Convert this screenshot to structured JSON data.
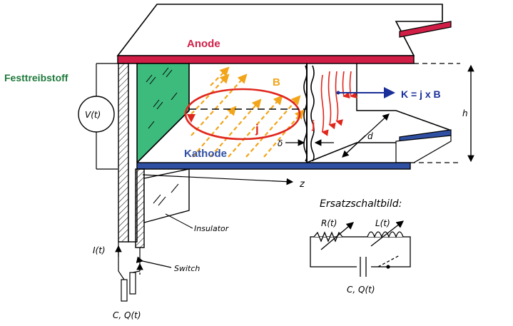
{
  "labels": {
    "anode": "Anode",
    "festtreibstoff": "Festtreibstoff",
    "kathode": "Kathode",
    "b_field": "B",
    "j_current_left": "j",
    "j_current_right": "j",
    "lorentz_force": "K = j x B",
    "voltage": "V(t)",
    "height": "h",
    "gap_d": "d",
    "delta": "δ",
    "z_axis": "z",
    "insulator": "Insulator",
    "switch": "Switch",
    "current": "I(t)",
    "capacitor": "C, Q(t)"
  },
  "equivalent_circuit": {
    "title": "Ersatzschaltbild:",
    "resistor": "R(t)",
    "inductor": "L(t)",
    "capacitor": "C, Q(t)"
  },
  "colors": {
    "anode": "#d01e46",
    "kathode": "#2f4fa3",
    "festtreibstoff": "#1f7a3c",
    "propellant_fill": "#3dbb7d",
    "b_field": "#f2a51a",
    "current": "#e0261c",
    "force": "#1b2f9a"
  }
}
